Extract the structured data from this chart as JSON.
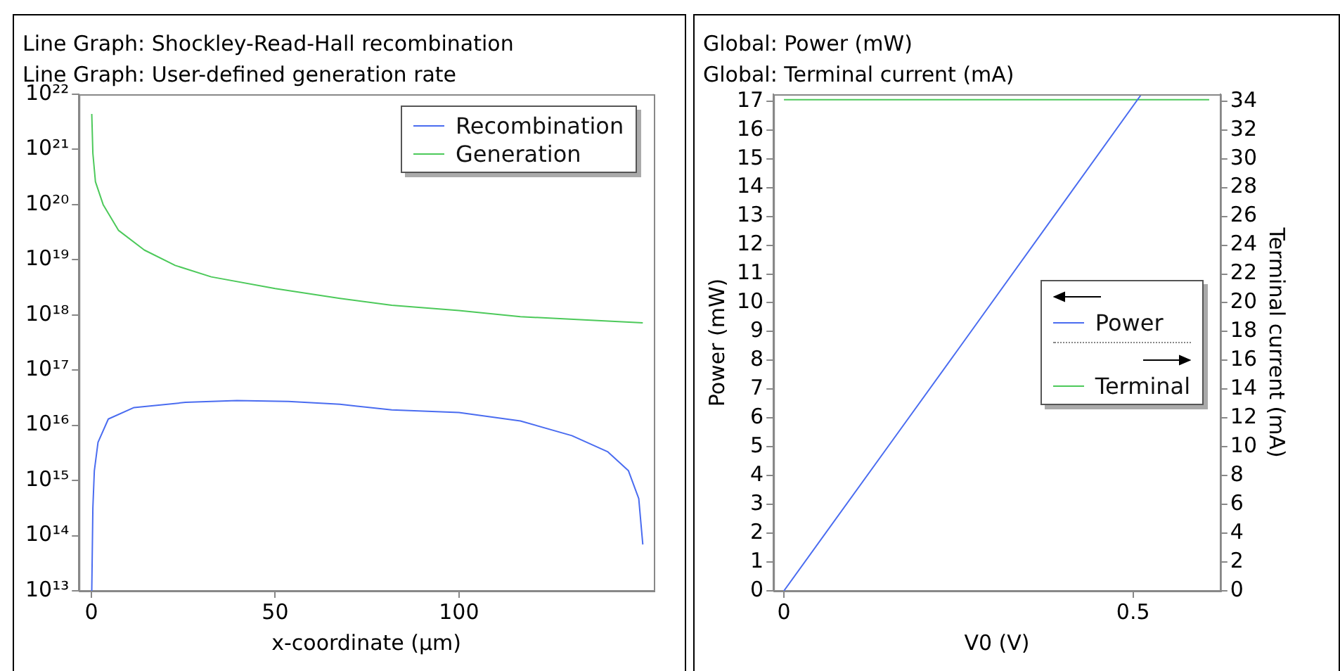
{
  "chart_data": [
    {
      "type": "line",
      "title": "Line Graph: Shockley-Read-Hall recombination",
      "subtitle": "Line Graph: User-defined generation rate",
      "xlabel": "x-coordinate (µm)",
      "log": "y",
      "grid": false,
      "legend": "top right",
      "xlim": [
        -3.4,
        153
      ],
      "xticks": [
        0,
        50,
        100
      ],
      "ylim": [
        10000000000000.0,
        1e+22
      ],
      "yticks": [
        {
          "value": 10000000000000.0,
          "label": "10¹³"
        },
        {
          "value": 100000000000000.0,
          "label": "10¹⁴"
        },
        {
          "value": 1000000000000000.0,
          "label": "10¹⁵"
        },
        {
          "value": 1e+16,
          "label": "10¹⁶"
        },
        {
          "value": 1e+17,
          "label": "10¹⁷"
        },
        {
          "value": 1e+18,
          "label": "10¹⁸"
        },
        {
          "value": 1e+19,
          "label": "10¹⁹"
        },
        {
          "value": 1e+20,
          "label": "10²⁰"
        },
        {
          "value": 1e+21,
          "label": "10²¹"
        },
        {
          "value": 1e+22,
          "label": "10²²"
        }
      ],
      "series": [
        {
          "name": "Recombination",
          "color": "#4a6cf0",
          "x": [
            0.1,
            0.4,
            0.8,
            1.8,
            4.6,
            11.6,
            25.6,
            39.6,
            53.6,
            67.6,
            81.7,
            100,
            116.7,
            130.7,
            140.5,
            146.1,
            148.9,
            150
          ],
          "values": [
            10000000000000.0,
            320000000000000.0,
            1500000000000000.0,
            4900000000000000.0,
            1.3e+16,
            2.1e+16,
            2.6e+16,
            2.8e+16,
            2.7e+16,
            2.4e+16,
            1.9e+16,
            1.7e+16,
            1.2e+16,
            6500000000000000.0,
            3300000000000000.0,
            1500000000000000.0,
            470000000000000.0,
            69000000000000.0
          ]
        },
        {
          "name": "Generation",
          "color": "#4cc95a",
          "x": [
            0.1,
            0.4,
            1.1,
            3.2,
            7.4,
            14.4,
            22.8,
            32.6,
            50,
            67.6,
            81.7,
            100,
            116.7,
            134.9,
            150
          ],
          "values": [
            4.4e+21,
            8.5e+20,
            2.6e+20,
            1e+20,
            3.4e+19,
            1.5e+19,
            7.9e+18,
            4.9e+18,
            3e+18,
            2e+18,
            1.5e+18,
            1.2e+18,
            9.3e+17,
            8.1e+17,
            7.2e+17
          ]
        }
      ]
    },
    {
      "type": "line",
      "title": "Global: Power (mW)",
      "subtitle": "Global: Terminal current (mA)",
      "xlabel": "V0 (V)",
      "ylabel": "Power (mW)",
      "y2label": "Terminal current (mA)",
      "grid": false,
      "legend": "right",
      "xlim": [
        -0.015,
        0.625
      ],
      "xticks": [
        0,
        0.5
      ],
      "ylim": [
        0,
        17.24
      ],
      "yticks": [
        0,
        1,
        2,
        3,
        4,
        5,
        6,
        7,
        8,
        9,
        10,
        11,
        12,
        13,
        14,
        15,
        16,
        17
      ],
      "y2lim": [
        0,
        34.48
      ],
      "y2ticks": [
        0,
        2,
        4,
        6,
        8,
        10,
        12,
        14,
        16,
        18,
        20,
        22,
        24,
        26,
        28,
        30,
        32,
        34
      ],
      "series": [
        {
          "name": "Power",
          "color": "#4a6cf0",
          "axis": "y",
          "x": [
            0,
            0.25,
            0.512
          ],
          "values": [
            0,
            8.4,
            17.24
          ]
        },
        {
          "name": "Terminal",
          "color": "#4cc95a",
          "axis": "y2",
          "x": [
            0,
            0.609
          ],
          "values": [
            34.1,
            34.1
          ]
        }
      ]
    }
  ]
}
